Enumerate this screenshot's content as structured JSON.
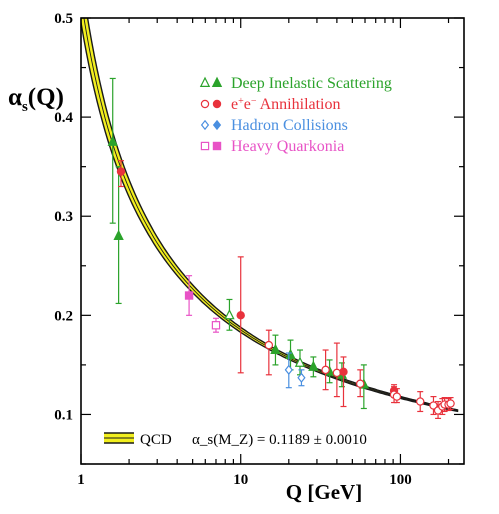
{
  "chart_data": {
    "type": "scatter",
    "xlabel": "Q [GeV]",
    "ylabel": "α_s(Q)",
    "xscale": "log",
    "xlim": [
      1,
      250
    ],
    "ylim": [
      0.05,
      0.5
    ],
    "xticks": [
      1,
      10,
      100
    ],
    "xtick_labels": [
      "1",
      "10",
      "100"
    ],
    "yticks": [
      0.1,
      0.2,
      0.3,
      0.4,
      0.5
    ],
    "ytick_labels": [
      "0.1",
      "0.2",
      "0.3",
      "0.4",
      "0.5"
    ],
    "grid": false,
    "legend_position": "top-right",
    "band": {
      "label": "QCD",
      "formula": "α_s(M_Z) = 0.1189 ± 0.0010",
      "alpha_mz": 0.1189,
      "alpha_mz_err": 0.001,
      "mz": 91.1876,
      "x_range": [
        1.0,
        230
      ],
      "edge_color": "#1a1a1a",
      "fill_color": "#f2ef1e"
    },
    "series": [
      {
        "name": "Deep Inelastic Scattering",
        "color": "#2ba32b",
        "points": [
          {
            "x": 1.58,
            "y": 0.375,
            "ylo": 0.293,
            "yhi": 0.439,
            "marker": "triangle",
            "filled": true
          },
          {
            "x": 1.72,
            "y": 0.28,
            "ylo": 0.212,
            "yhi": 0.35,
            "marker": "triangle",
            "filled": true
          },
          {
            "x": 8.5,
            "y": 0.2,
            "ylo": 0.185,
            "yhi": 0.216,
            "marker": "triangle",
            "filled": false
          },
          {
            "x": 16.5,
            "y": 0.165,
            "ylo": 0.15,
            "yhi": 0.18,
            "marker": "triangle",
            "filled": true
          },
          {
            "x": 20.5,
            "y": 0.16,
            "ylo": 0.145,
            "yhi": 0.175,
            "marker": "triangle",
            "filled": true
          },
          {
            "x": 23.5,
            "y": 0.152,
            "ylo": 0.14,
            "yhi": 0.165,
            "marker": "triangle",
            "filled": false
          },
          {
            "x": 28.5,
            "y": 0.148,
            "ylo": 0.138,
            "yhi": 0.158,
            "marker": "triangle",
            "filled": true
          },
          {
            "x": 36.0,
            "y": 0.143,
            "ylo": 0.132,
            "yhi": 0.155,
            "marker": "triangle",
            "filled": true
          },
          {
            "x": 43.0,
            "y": 0.14,
            "ylo": 0.128,
            "yhi": 0.152,
            "marker": "triangle",
            "filled": true
          },
          {
            "x": 59.0,
            "y": 0.13,
            "ylo": 0.106,
            "yhi": 0.15,
            "marker": "triangle",
            "filled": true
          }
        ]
      },
      {
        "name": "e+e− Annihilation",
        "label_html": "e<tspan baseline-shift='super' font-size='10'>+</tspan>e<tspan baseline-shift='super' font-size='10'>−</tspan> Annihilation",
        "color": "#e8323c",
        "points": [
          {
            "x": 1.78,
            "y": 0.345,
            "ylo": 0.33,
            "yhi": 0.356,
            "marker": "circle",
            "filled": true
          },
          {
            "x": 10.0,
            "y": 0.2,
            "ylo": 0.142,
            "yhi": 0.259,
            "marker": "circle",
            "filled": true
          },
          {
            "x": 15.0,
            "y": 0.17,
            "ylo": 0.14,
            "yhi": 0.185,
            "marker": "circle",
            "filled": false
          },
          {
            "x": 34.0,
            "y": 0.145,
            "ylo": 0.125,
            "yhi": 0.165,
            "marker": "circle",
            "filled": false
          },
          {
            "x": 40.0,
            "y": 0.142,
            "ylo": 0.118,
            "yhi": 0.172,
            "marker": "circle",
            "filled": false
          },
          {
            "x": 44.0,
            "y": 0.143,
            "ylo": 0.108,
            "yhi": 0.158,
            "marker": "circle",
            "filled": true
          },
          {
            "x": 56.0,
            "y": 0.131,
            "ylo": 0.118,
            "yhi": 0.145,
            "marker": "circle",
            "filled": false
          },
          {
            "x": 91.2,
            "y": 0.124,
            "ylo": 0.118,
            "yhi": 0.13,
            "marker": "circle",
            "filled": true
          },
          {
            "x": 91.2,
            "y": 0.12,
            "ylo": 0.112,
            "yhi": 0.128,
            "marker": "circle",
            "filled": false
          },
          {
            "x": 95.0,
            "y": 0.118,
            "ylo": 0.112,
            "yhi": 0.126,
            "marker": "circle",
            "filled": false
          },
          {
            "x": 133.0,
            "y": 0.113,
            "ylo": 0.103,
            "yhi": 0.123,
            "marker": "circle",
            "filled": false
          },
          {
            "x": 161.0,
            "y": 0.109,
            "ylo": 0.1,
            "yhi": 0.118,
            "marker": "circle",
            "filled": false
          },
          {
            "x": 172.0,
            "y": 0.104,
            "ylo": 0.096,
            "yhi": 0.113,
            "marker": "circle",
            "filled": false
          },
          {
            "x": 183.0,
            "y": 0.108,
            "ylo": 0.1,
            "yhi": 0.116,
            "marker": "circle",
            "filled": false
          },
          {
            "x": 189.0,
            "y": 0.11,
            "ylo": 0.103,
            "yhi": 0.117,
            "marker": "circle",
            "filled": false
          },
          {
            "x": 200.0,
            "y": 0.11,
            "ylo": 0.104,
            "yhi": 0.116,
            "marker": "circle",
            "filled": false
          },
          {
            "x": 206.0,
            "y": 0.111,
            "ylo": 0.105,
            "yhi": 0.117,
            "marker": "circle",
            "filled": false
          }
        ]
      },
      {
        "name": "Hadron Collisions",
        "color": "#4a8fe0",
        "points": [
          {
            "x": 20.0,
            "y": 0.145,
            "ylo": 0.127,
            "yhi": 0.162,
            "marker": "diamond",
            "filled": false
          },
          {
            "x": 24.0,
            "y": 0.137,
            "ylo": 0.129,
            "yhi": 0.145,
            "marker": "diamond",
            "filled": false
          }
        ]
      },
      {
        "name": "Heavy Quarkonia",
        "color": "#e853c6",
        "points": [
          {
            "x": 4.75,
            "y": 0.22,
            "ylo": 0.2,
            "yhi": 0.24,
            "marker": "square",
            "filled": true
          },
          {
            "x": 7.0,
            "y": 0.19,
            "ylo": 0.183,
            "yhi": 0.197,
            "marker": "square",
            "filled": false
          }
        ]
      }
    ]
  }
}
